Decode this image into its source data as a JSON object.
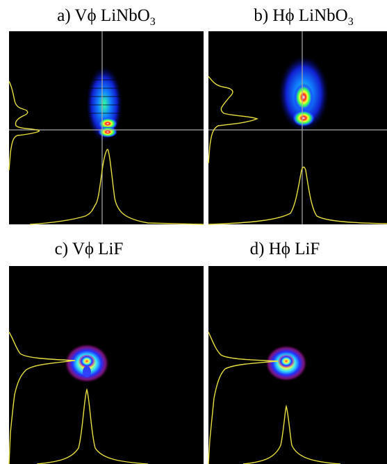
{
  "panels": [
    {
      "label": "a) Vϕ LiNbO",
      "subscript": "3"
    },
    {
      "label": "b) Hϕ LiNbO",
      "subscript": "3"
    },
    {
      "label": "c) Vϕ LiF"
    },
    {
      "label": "d) Hϕ LiF"
    }
  ]
}
